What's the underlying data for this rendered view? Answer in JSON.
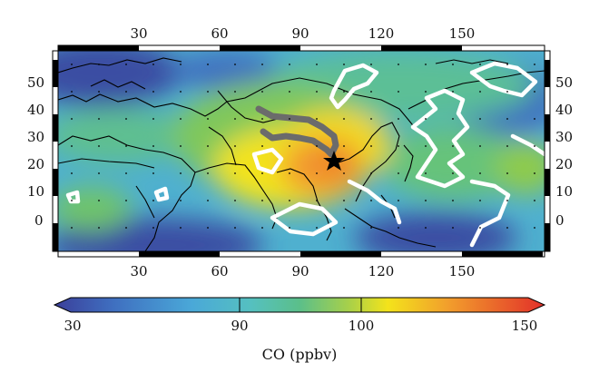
{
  "map": {
    "lon_ticks": [
      "30",
      "60",
      "90",
      "120",
      "150"
    ],
    "lat_ticks": [
      "50",
      "40",
      "30",
      "20",
      "10",
      "0"
    ]
  },
  "colorbar": {
    "title": "CO (ppbv)",
    "tick_labels": [
      "30",
      "90",
      "100",
      "150"
    ]
  },
  "colors": {
    "low": "#3f4fa2",
    "mid_low": "#4aa8d8",
    "mid": "#4fb89c",
    "green": "#7dc25a",
    "yellow": "#f3e31b",
    "orange": "#f29a2e",
    "red": "#e2302a",
    "contour": "#ffffff",
    "trajectory": "#707070"
  }
}
